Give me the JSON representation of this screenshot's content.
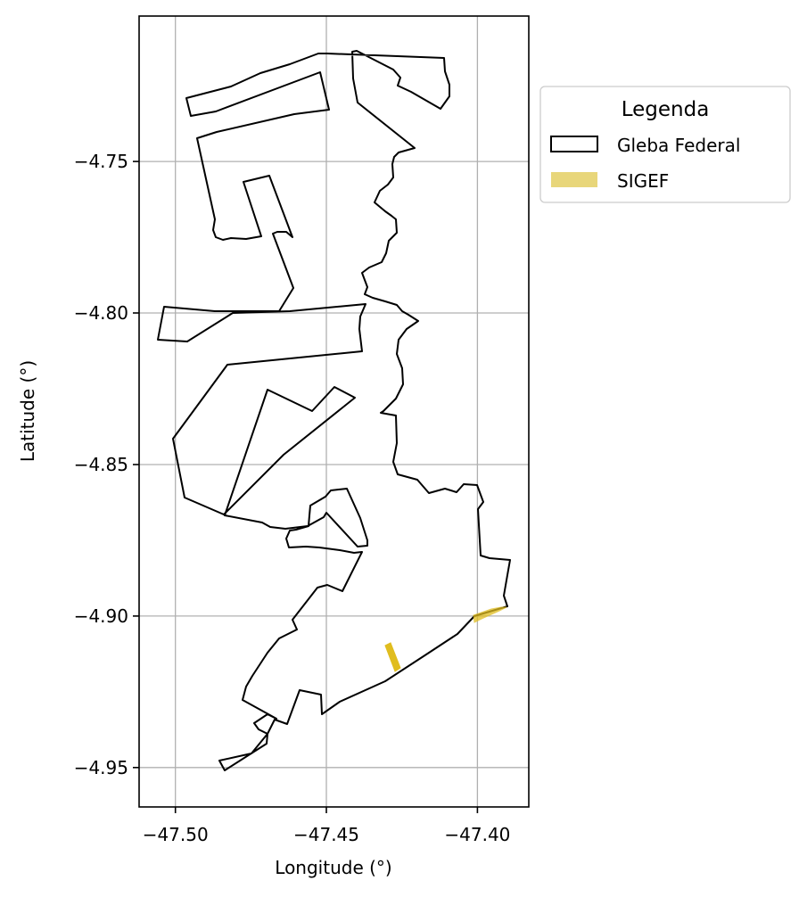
{
  "chart_data": {
    "type": "map",
    "xlabel": "Longitude (°)",
    "ylabel": "Latitude (°)",
    "xlim": [
      -47.512,
      -47.383
    ],
    "ylim": [
      -4.963,
      -4.702
    ],
    "x_ticks": [
      -47.5,
      -47.45,
      -47.4
    ],
    "y_ticks": [
      -4.75,
      -4.8,
      -4.85,
      -4.9,
      -4.95
    ],
    "x_tick_labels": [
      "−47.50",
      "−47.45",
      "−47.40"
    ],
    "y_tick_labels": [
      "−4.75",
      "−4.80",
      "−4.85",
      "−4.90",
      "−4.95"
    ],
    "grid": true,
    "legend": {
      "title": "Legenda",
      "placement": "outside right",
      "entries": [
        {
          "label": "Gleba Federal",
          "style": "outline",
          "color": "#000000"
        },
        {
          "label": "SIGEF",
          "style": "fill",
          "color": "#e8d67a"
        }
      ]
    },
    "layers": [
      {
        "name": "Gleba Federal",
        "color": "#000000",
        "polygons": [
          [
            [
              -47.4966,
              -4.7279
            ],
            [
              -47.4819,
              -4.7243
            ],
            [
              -47.4694,
              -4.7204
            ],
            [
              -47.4612,
              -4.717
            ],
            [
              -47.4498,
              -4.7134
            ],
            [
              -47.4473,
              -4.7137
            ],
            [
              -47.4094,
              -4.7147
            ],
            [
              -47.4087,
              -4.7187
            ],
            [
              -47.4071,
              -4.7225
            ],
            [
              -47.4074,
              -4.7264
            ],
            [
              -47.4102,
              -4.7321
            ],
            [
              -47.4198,
              -4.7272
            ],
            [
              -47.4234,
              -4.7249
            ],
            [
              -47.4248,
              -4.7238
            ],
            [
              -47.4231,
              -4.7212
            ],
            [
              -47.4389,
              -4.7153
            ],
            [
              -47.4416,
              -4.7144
            ],
            [
              -47.4419,
              -4.7194
            ],
            [
              -47.4406,
              -4.7256
            ],
            [
              -47.4274,
              -4.7444
            ],
            [
              -47.4307,
              -4.7463
            ],
            [
              -47.432,
              -4.7473
            ],
            [
              -47.4335,
              -4.7488
            ],
            [
              -47.4331,
              -4.7531
            ],
            [
              -47.4355,
              -4.7553
            ],
            [
              -47.4376,
              -4.7641
            ],
            [
              -47.4339,
              -4.7683
            ],
            [
              -47.4323,
              -4.7709
            ],
            [
              -47.4328,
              -4.7729
            ],
            [
              -47.43,
              -4.7799
            ],
            [
              -47.4333,
              -4.784
            ],
            [
              -47.4331,
              -4.7888
            ],
            [
              -47.436,
              -4.7916
            ],
            [
              -47.438,
              -4.7954
            ],
            [
              -47.438,
              -4.7987
            ],
            [
              -47.4393,
              -4.8002
            ],
            [
              -47.4307,
              -4.8025
            ],
            [
              -47.4343,
              -4.8063
            ],
            [
              -47.4355,
              -4.8113
            ],
            [
              -47.4349,
              -4.8183
            ],
            [
              -47.4387,
              -4.8238
            ],
            [
              -47.4394,
              -4.8293
            ],
            [
              -47.4367,
              -4.8339
            ],
            [
              -47.4369,
              -4.8377
            ],
            [
              -47.4363,
              -4.8401
            ],
            [
              -47.4346,
              -4.8423
            ],
            [
              -47.4356,
              -4.8496
            ],
            [
              -47.4344,
              -4.8575
            ],
            [
              -47.4286,
              -4.8588
            ],
            [
              -47.4251,
              -4.8607
            ],
            [
              -47.4191,
              -4.8598
            ],
            [
              -47.4151,
              -4.8611
            ],
            [
              -47.4097,
              -4.8568
            ],
            [
              -47.403,
              -4.855
            ],
            [
              -47.3993,
              -4.8579
            ],
            [
              -47.3966,
              -4.8669
            ],
            [
              -47.3971,
              -4.875
            ],
            [
              -47.3963,
              -4.8802
            ],
            [
              -47.3949,
              -4.8819
            ],
            [
              -47.3848,
              -4.881
            ],
            [
              -47.388,
              -4.8845
            ],
            [
              -47.3868,
              -4.8932
            ],
            [
              -47.3892,
              -4.897
            ],
            [
              -47.403,
              -4.9005
            ],
            [
              -47.4086,
              -4.9062
            ],
            [
              -47.4194,
              -4.9138
            ],
            [
              -47.4324,
              -4.9226
            ],
            [
              -47.4467,
              -4.9297
            ],
            [
              -47.4489,
              -4.9315
            ],
            [
              -47.4522,
              -4.9318
            ],
            [
              -47.4562,
              -4.9276
            ],
            [
              -47.4611,
              -4.9298
            ],
            [
              -47.4705,
              -4.9395
            ],
            [
              -47.483,
              -4.9509
            ],
            [
              -47.486,
              -4.9475
            ],
            [
              -47.4776,
              -4.944
            ],
            [
              -47.4734,
              -4.9422
            ],
            [
              -47.4698,
              -4.938
            ],
            [
              -47.4706,
              -4.9341
            ],
            [
              -47.4683,
              -4.9312
            ],
            [
              -47.4685,
              -4.9217
            ],
            [
              -47.4637,
              -4.9148
            ],
            [
              -47.4577,
              -4.9054
            ],
            [
              -47.4447,
              -4.8863
            ],
            [
              -47.4423,
              -4.8782
            ],
            [
              -47.4377,
              -4.877
            ],
            [
              -47.4366,
              -4.8695
            ],
            [
              -47.4392,
              -4.8592
            ],
            [
              -47.437,
              -4.8553
            ],
            [
              -47.4413,
              -4.8598
            ],
            [
              -47.4421,
              -4.8659
            ],
            [
              -47.4437,
              -4.8698
            ],
            [
              -47.4491,
              -4.8714
            ],
            [
              -47.4552,
              -4.8742
            ],
            [
              -47.4573,
              -4.8786
            ],
            [
              -47.4652,
              -4.8784
            ],
            [
              -47.4611,
              -4.8678
            ],
            [
              -47.4548,
              -4.8681
            ],
            [
              -47.4517,
              -4.8712
            ],
            [
              -47.4462,
              -4.8776
            ],
            [
              -47.4403,
              -4.8787
            ],
            [
              -47.4392,
              -4.8756
            ],
            [
              -47.4335,
              -4.8616
            ],
            [
              -47.4362,
              -4.8569
            ],
            [
              -47.4391,
              -4.8511
            ],
            [
              -47.4385,
              -4.8465
            ],
            [
              -47.442,
              -4.8421
            ]
          ],
          [
            [
              -47.4929,
              -4.7279
            ],
            [
              -47.4926,
              -4.7335
            ],
            [
              -47.4827,
              -4.733
            ],
            [
              -47.4583,
              -4.7189
            ],
            [
              -47.4508,
              -4.721
            ],
            [
              -47.4495,
              -4.7253
            ],
            [
              -47.4556,
              -4.7283
            ],
            [
              -47.4745,
              -4.7375
            ],
            [
              -47.4914,
              -4.7418
            ],
            [
              -47.4936,
              -4.7425
            ],
            [
              -47.487,
              -4.762
            ],
            [
              -47.4849,
              -4.7704
            ],
            [
              -47.4843,
              -4.7737
            ],
            [
              -47.4785,
              -4.7754
            ],
            [
              -47.472,
              -4.7761
            ],
            [
              -47.4649,
              -4.756
            ],
            [
              -47.4722,
              -4.7536
            ],
            [
              -47.4752,
              -4.7596
            ],
            [
              -47.4812,
              -4.781
            ],
            [
              -47.4836,
              -4.7849
            ],
            [
              -47.4816,
              -4.792
            ],
            [
              -47.4749,
              -4.793
            ],
            [
              -47.4694,
              -4.7971
            ],
            [
              -47.4649,
              -4.7986
            ],
            [
              -47.4599,
              -4.7953
            ],
            [
              -47.4596,
              -4.7889
            ],
            [
              -47.4586,
              -4.7847
            ]
          ],
          [
            [
              -47.502,
              -4.7975
            ],
            [
              -47.495,
              -4.7993
            ],
            [
              -47.483,
              -4.7993
            ],
            [
              -47.4659,
              -4.7998
            ],
            [
              -47.454,
              -4.8017
            ],
            [
              -47.4459,
              -4.8029
            ],
            [
              -47.438,
              -4.799
            ],
            [
              -47.4357,
              -4.8002
            ],
            [
              -47.4387,
              -4.813
            ],
            [
              -47.4452,
              -4.812
            ],
            [
              -47.4564,
              -4.8131
            ],
            [
              -47.4838,
              -4.8169
            ],
            [
              -47.4962,
              -4.8093
            ],
            [
              -47.5054,
              -4.8091
            ]
          ],
          [
            [
              -47.5,
              -4.842
            ],
            [
              -47.4887,
              -4.8162
            ],
            [
              -47.4602,
              -4.8159
            ],
            [
              -47.4476,
              -4.8144
            ],
            [
              -47.4445,
              -4.8217
            ],
            [
              -47.4484,
              -4.8272
            ],
            [
              -47.4535,
              -4.8247
            ],
            [
              -47.4694,
              -4.8254
            ],
            [
              -47.4876,
              -4.8607
            ],
            [
              -47.4962,
              -4.8614
            ]
          ],
          [
            [
              -47.481,
              -4.867
            ],
            [
              -47.46,
              -4.8713
            ],
            [
              -47.4555,
              -4.8688
            ],
            [
              -47.4526,
              -4.8671
            ],
            [
              -47.4492,
              -4.862
            ],
            [
              -47.4442,
              -4.8579
            ],
            [
              -47.438,
              -4.8562
            ],
            [
              -47.4362,
              -4.8628
            ],
            [
              -47.4369,
              -4.8758
            ],
            [
              -47.441,
              -4.8781
            ],
            [
              -47.4426,
              -4.8704
            ],
            [
              -47.4479,
              -4.8664
            ],
            [
              -47.4548,
              -4.8679
            ],
            [
              -47.4624,
              -4.8665
            ]
          ],
          [
            [
              -47.4685,
              -4.8757
            ],
            [
              -47.452,
              -4.8779
            ],
            [
              -47.4458,
              -4.878
            ],
            [
              -47.4431,
              -4.881
            ],
            [
              -47.4408,
              -4.8851
            ],
            [
              -47.4365,
              -4.8874
            ],
            [
              -47.4427,
              -4.8908
            ],
            [
              -47.4477,
              -4.893
            ],
            [
              -47.4528,
              -4.8985
            ],
            [
              -47.4591,
              -4.9043
            ],
            [
              -47.4677,
              -4.9179
            ],
            [
              -47.472,
              -4.9257
            ],
            [
              -47.4802,
              -4.9342
            ],
            [
              -47.486,
              -4.9421
            ],
            [
              -47.4783,
              -4.9442
            ],
            [
              -47.4728,
              -4.942
            ]
          ]
        ]
      },
      {
        "name": "SIGEF",
        "color": "#e0bd1f",
        "polygons": [
          [
            [
              -47.4296,
              -4.9101
            ],
            [
              -47.4278,
              -4.9092
            ],
            [
              -47.425,
              -4.9162
            ],
            [
              -47.4264,
              -4.9177
            ]
          ],
          [
            [
              -47.4003,
              -4.9004
            ],
            [
              -47.3933,
              -4.8974
            ],
            [
              -47.391,
              -4.8973
            ],
            [
              -47.401,
              -4.9017
            ]
          ]
        ]
      }
    ]
  }
}
